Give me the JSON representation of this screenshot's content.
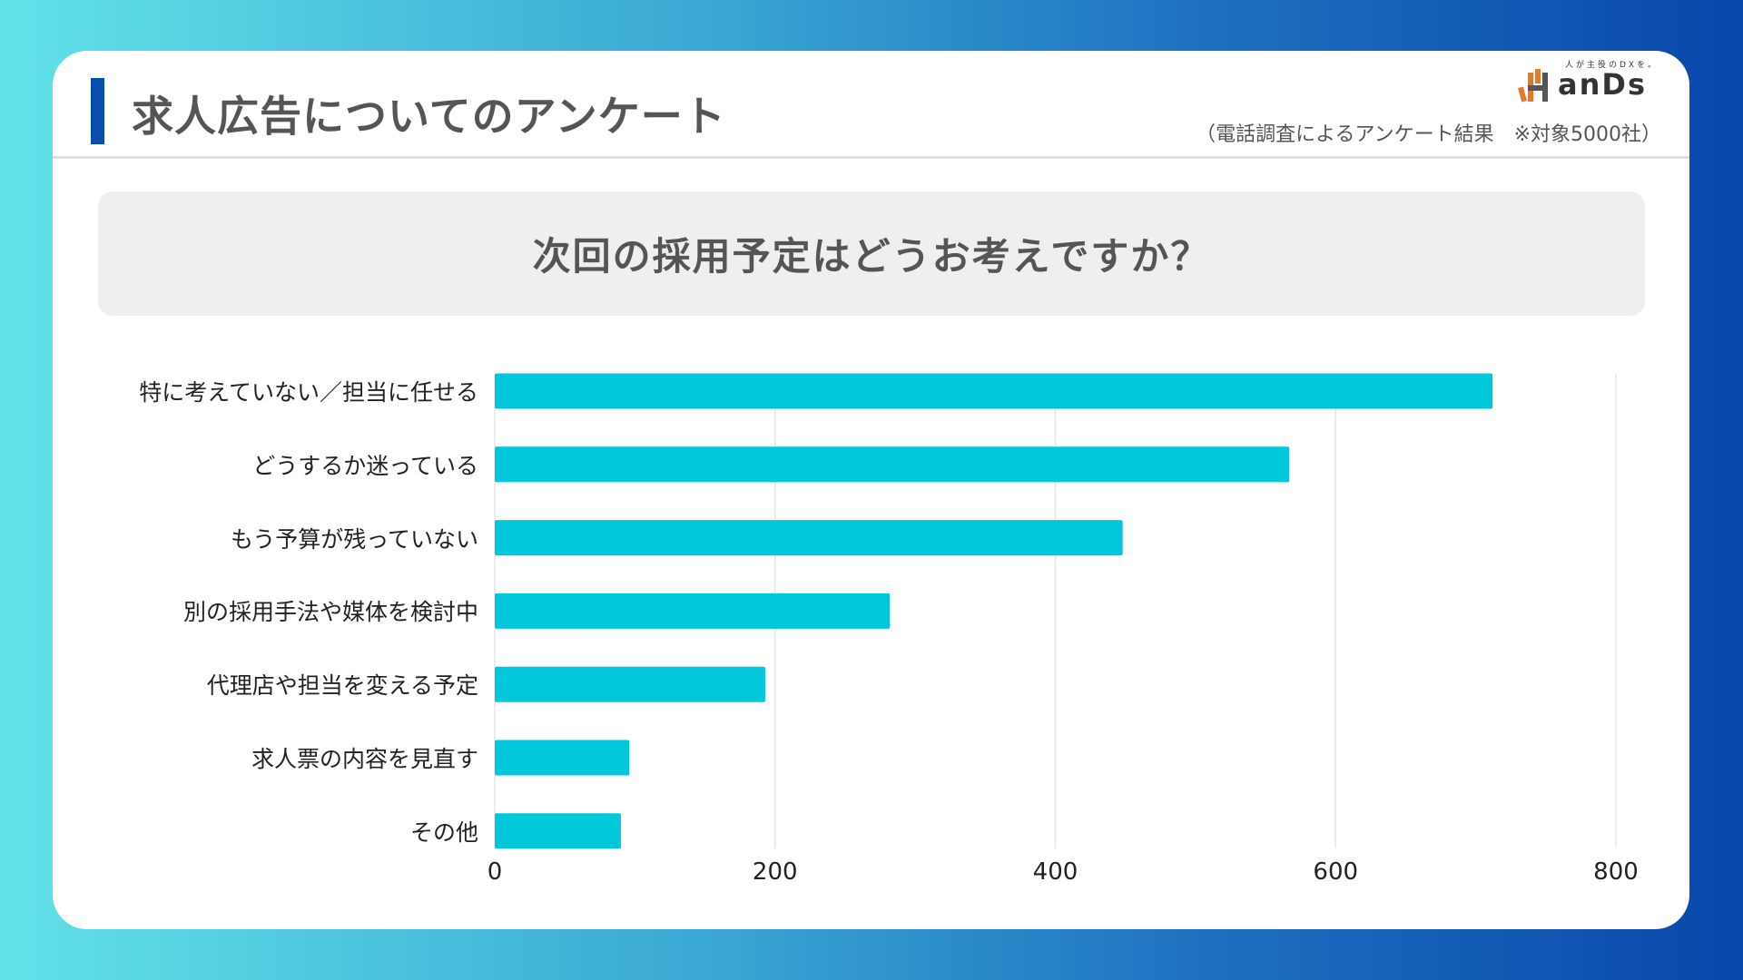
{
  "header": {
    "title": "求人広告についてのアンケート",
    "subtitle": "（電話調査によるアンケート結果　※対象5000社）"
  },
  "logo": {
    "tagline": "人が主役のDXを。",
    "wordmark": "anDs"
  },
  "question": "次回の採用予定はどうお考えですか？",
  "colors": {
    "bar": "#00c8da",
    "accent": "#0a4db0"
  },
  "chart_data": {
    "type": "bar",
    "orientation": "horizontal",
    "categories": [
      "特に考えていない／担当に任せる",
      "どうするか迷っている",
      "もう予算が残っていない",
      "別の採用手法や媒体を検討中",
      "代理店や担当を変える予定",
      "求人票の内容を見直す",
      "その他"
    ],
    "values": [
      712,
      567,
      448,
      282,
      193,
      96,
      90
    ],
    "xlim": [
      0,
      800
    ],
    "xticks": [
      "0",
      "200",
      "400",
      "600",
      "800"
    ],
    "grid": true,
    "title": "次回の採用予定はどうお考えですか？",
    "xlabel": "",
    "ylabel": ""
  }
}
